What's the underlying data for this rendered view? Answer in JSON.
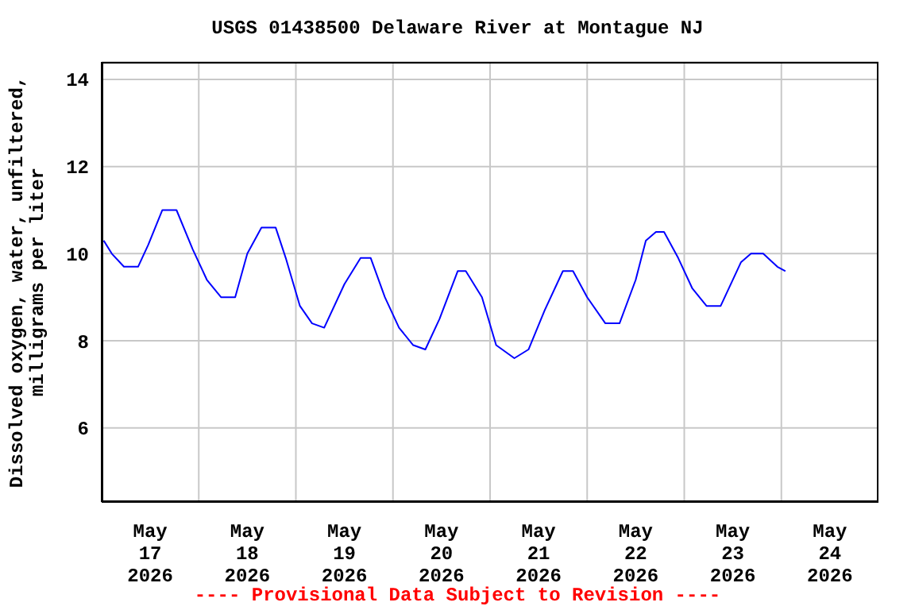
{
  "chart_data": {
    "type": "line",
    "title": "USGS 01438500 Delaware River at Montague NJ",
    "ylabel": "Dissolved oxygen, water, unfiltered, milligrams per liter",
    "annotations": [
      "---- Provisional Data Subject to Revision ----"
    ],
    "series": [
      {
        "color": "#0000ff",
        "x": [
          "2026-05-17T00:30",
          "2026-05-17T02:30",
          "2026-05-17T05:30",
          "2026-05-17T09:00",
          "2026-05-17T11:30",
          "2026-05-17T15:00",
          "2026-05-17T18:30",
          "2026-05-17T22:30",
          "2026-05-18T02:00",
          "2026-05-18T05:30",
          "2026-05-18T09:00",
          "2026-05-18T12:00",
          "2026-05-18T15:30",
          "2026-05-18T19:00",
          "2026-05-18T21:30",
          "2026-05-19T01:00",
          "2026-05-19T04:00",
          "2026-05-19T07:00",
          "2026-05-19T12:00",
          "2026-05-19T16:00",
          "2026-05-19T18:30",
          "2026-05-19T22:00",
          "2026-05-20T01:30",
          "2026-05-20T05:00",
          "2026-05-20T08:00",
          "2026-05-20T11:30",
          "2026-05-20T16:00",
          "2026-05-20T18:00",
          "2026-05-20T22:00",
          "2026-05-21T01:30",
          "2026-05-21T06:00",
          "2026-05-21T09:30",
          "2026-05-21T13:30",
          "2026-05-21T18:00",
          "2026-05-21T20:30",
          "2026-05-22T00:00",
          "2026-05-22T04:30",
          "2026-05-22T08:00",
          "2026-05-22T12:00",
          "2026-05-22T14:30",
          "2026-05-22T17:00",
          "2026-05-22T19:00",
          "2026-05-22T22:30",
          "2026-05-23T02:00",
          "2026-05-23T05:30",
          "2026-05-23T09:00",
          "2026-05-23T14:00",
          "2026-05-23T16:30",
          "2026-05-23T19:30",
          "2026-05-23T23:00",
          "2026-05-24T01:00"
        ],
        "values": [
          10.3,
          10.0,
          9.7,
          9.7,
          10.2,
          11.0,
          11.0,
          10.1,
          9.4,
          9.0,
          9.0,
          10.0,
          10.6,
          10.6,
          9.9,
          8.8,
          8.4,
          8.3,
          9.3,
          9.9,
          9.9,
          9.0,
          8.3,
          7.9,
          7.8,
          8.5,
          9.6,
          9.6,
          9.0,
          7.9,
          7.6,
          7.8,
          8.7,
          9.6,
          9.6,
          9.0,
          8.4,
          8.4,
          9.4,
          10.3,
          10.5,
          10.5,
          9.9,
          9.2,
          8.8,
          8.8,
          9.8,
          10.0,
          10.0,
          9.7,
          9.6
        ]
      }
    ],
    "xlim": [
      "2026-05-17T00:00",
      "2026-05-25T00:00"
    ],
    "xticks": [
      {
        "value": "2026-05-18T00:00",
        "label": null
      },
      {
        "value": "2026-05-19T00:00",
        "label": null
      },
      {
        "value": "2026-05-20T00:00",
        "label": null
      },
      {
        "value": "2026-05-21T00:00",
        "label": null
      },
      {
        "value": "2026-05-22T00:00",
        "label": null
      },
      {
        "value": "2026-05-23T00:00",
        "label": null
      },
      {
        "value": "2026-05-24T00:00",
        "label": null
      },
      {
        "value": "2026-05-17T12:00",
        "label": "May 17 2026"
      },
      {
        "value": "2026-05-18T12:00",
        "label": "May 18 2026"
      },
      {
        "value": "2026-05-19T12:00",
        "label": "May 19 2026"
      },
      {
        "value": "2026-05-20T12:00",
        "label": "May 20 2026"
      },
      {
        "value": "2026-05-21T12:00",
        "label": "May 21 2026"
      },
      {
        "value": "2026-05-22T12:00",
        "label": "May 22 2026"
      },
      {
        "value": "2026-05-23T12:00",
        "label": "May 23 2026"
      },
      {
        "value": "2026-05-24T12:00",
        "label": "May 24 2026"
      }
    ],
    "ylim": [
      4.3,
      14.4
    ],
    "yticks": [
      6,
      8,
      10,
      12,
      14
    ],
    "grid": true
  }
}
